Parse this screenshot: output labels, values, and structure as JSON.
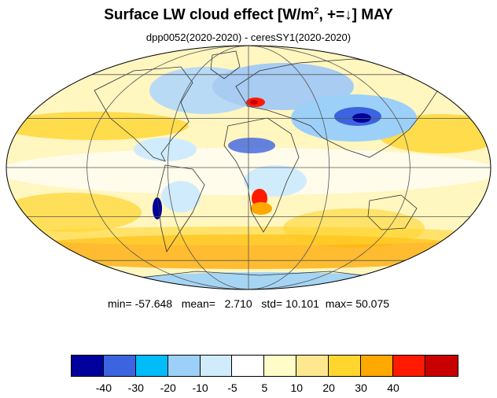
{
  "title": {
    "prefix": "Surface LW cloud effect [W/m",
    "superscript": "2",
    "suffix": ", +=↓]  MAY"
  },
  "subtitle": "dpp0052(2020-2020) - ceresSY1(2020-2020)",
  "stats": {
    "min_label": "min=",
    "min": "-57.648",
    "mean_label": "mean=",
    "mean": "2.710",
    "std_label": "std=",
    "std": "10.101",
    "max_label": "max=",
    "max": "50.075"
  },
  "colorbar": {
    "colors": [
      "#00009c",
      "#3c64e0",
      "#00bcf8",
      "#9cd0f8",
      "#d0ecfc",
      "#ffffff",
      "#fffcc8",
      "#fde890",
      "#ffd62e",
      "#ffa800",
      "#ff1a00",
      "#c80000"
    ],
    "labels": [
      "-40",
      "-30",
      "-20",
      "-10",
      "-5",
      "5",
      "10",
      "20",
      "30",
      "40"
    ]
  },
  "map": {
    "projection": "mollweide",
    "graticule_lon_step": 60,
    "graticule_lat_step": 30,
    "background_color": "#ffffff",
    "ocean_fill": "#fff6c0",
    "features": [
      {
        "name": "north-atlantic-blue",
        "color": "#b8daf5"
      },
      {
        "name": "europe-blue",
        "color": "#a8ccf2"
      },
      {
        "name": "asia-dark-blue",
        "color": "#3c64e0"
      },
      {
        "name": "asia-deep-blue",
        "color": "#00009c"
      },
      {
        "name": "mediterranean-red",
        "color": "#ff1a00"
      },
      {
        "name": "mediterranean-dark-red",
        "color": "#c80000"
      },
      {
        "name": "africa-red",
        "color": "#ff1a00"
      },
      {
        "name": "south-america-blue",
        "color": "#00009c"
      },
      {
        "name": "southern-ocean-orange",
        "color": "#ffa800"
      },
      {
        "name": "tropical-yellow",
        "color": "#ffd62e"
      }
    ]
  }
}
